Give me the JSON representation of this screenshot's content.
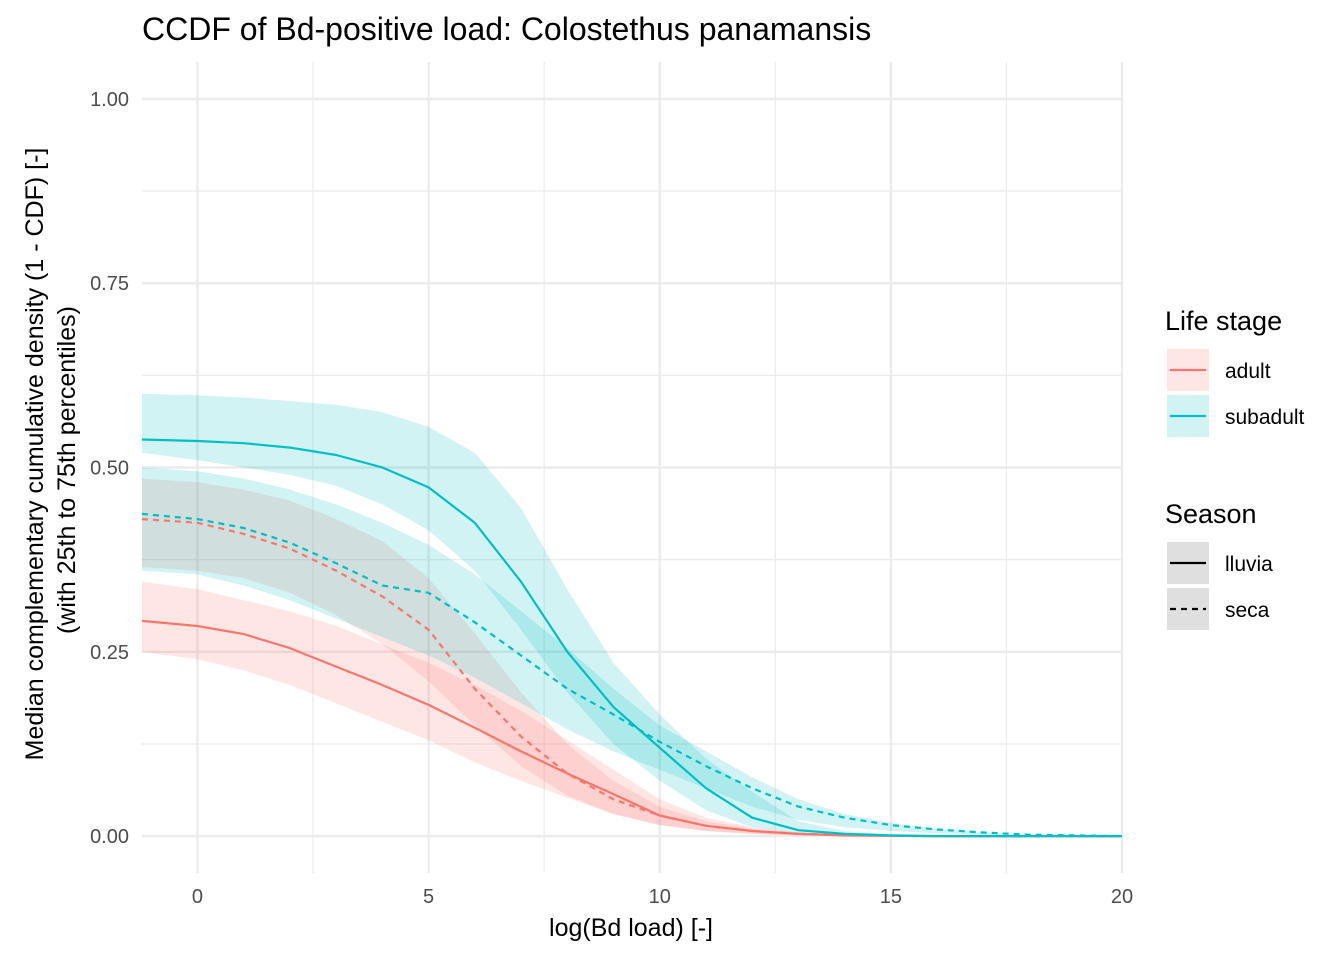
{
  "chart_data": {
    "type": "line",
    "title": "CCDF of Bd-positive load: Colostethus panamansis",
    "xlabel": "log(Bd load) [-]",
    "ylabel": [
      "Median complementary cumulative density (1 - CDF) [-]",
      "(with 25th to 75th percentiles)"
    ],
    "xlim": [
      -1.2,
      20
    ],
    "ylim": [
      -0.05,
      1.05
    ],
    "x_ticks": [
      0,
      5,
      10,
      15,
      20
    ],
    "x_tick_labels": [
      "0",
      "5",
      "10",
      "15",
      "20"
    ],
    "y_ticks": [
      0,
      0.25,
      0.5,
      0.75,
      1
    ],
    "y_tick_labels": [
      "0.00",
      "0.25",
      "0.50",
      "0.75",
      "1.00"
    ],
    "grid": true,
    "colors": {
      "adult": "#F8766D",
      "subadult": "#00BFC4"
    },
    "legend": {
      "placement": "right",
      "groups": [
        {
          "title": "Life stage",
          "kind": "color",
          "items": [
            {
              "label": "adult",
              "key": "adult"
            },
            {
              "label": "subadult",
              "key": "subadult"
            }
          ]
        },
        {
          "title": "Season",
          "kind": "linetype",
          "items": [
            {
              "label": "lluvia",
              "dash": "solid"
            },
            {
              "label": "seca",
              "dash": "dashed"
            }
          ]
        }
      ]
    },
    "series": [
      {
        "stage": "adult",
        "season": "lluvia",
        "x": [
          -1.2,
          0,
          1,
          2,
          3,
          4,
          5,
          6,
          7,
          8,
          9,
          10,
          11,
          12,
          13,
          14,
          15,
          16,
          17,
          18,
          19,
          20
        ],
        "median": [
          0.292,
          0.285,
          0.274,
          0.255,
          0.23,
          0.205,
          0.178,
          0.147,
          0.115,
          0.085,
          0.057,
          0.028,
          0.014,
          0.007,
          0.003,
          0.001,
          0.0005,
          0,
          0,
          0,
          0,
          0
        ],
        "lower": [
          0.25,
          0.24,
          0.225,
          0.205,
          0.18,
          0.155,
          0.13,
          0.1,
          0.075,
          0.052,
          0.03,
          0.015,
          0.007,
          0.003,
          0.001,
          0.0005,
          0,
          0,
          0,
          0,
          0,
          0
        ],
        "upper": [
          0.345,
          0.335,
          0.32,
          0.305,
          0.285,
          0.26,
          0.235,
          0.205,
          0.17,
          0.13,
          0.09,
          0.05,
          0.025,
          0.012,
          0.005,
          0.002,
          0.001,
          0,
          0,
          0,
          0,
          0
        ]
      },
      {
        "stage": "adult",
        "season": "seca",
        "x": [
          -1.2,
          0,
          1,
          2,
          3,
          4,
          5,
          6,
          7,
          8,
          9,
          10,
          11,
          12,
          13,
          14,
          15,
          16,
          17,
          18,
          19,
          20
        ],
        "median": [
          0.43,
          0.425,
          0.41,
          0.39,
          0.36,
          0.325,
          0.28,
          0.2,
          0.135,
          0.085,
          0.05,
          0.028,
          0.014,
          0.007,
          0.003,
          0.0015,
          0.0005,
          0,
          0,
          0,
          0,
          0
        ],
        "lower": [
          0.365,
          0.36,
          0.35,
          0.33,
          0.3,
          0.26,
          0.21,
          0.15,
          0.095,
          0.055,
          0.03,
          0.015,
          0.007,
          0.003,
          0.001,
          0.0005,
          0,
          0,
          0,
          0,
          0,
          0
        ],
        "upper": [
          0.485,
          0.48,
          0.47,
          0.455,
          0.43,
          0.4,
          0.35,
          0.275,
          0.195,
          0.125,
          0.075,
          0.04,
          0.02,
          0.01,
          0.005,
          0.002,
          0.001,
          0,
          0,
          0,
          0,
          0
        ]
      },
      {
        "stage": "subadult",
        "season": "lluvia",
        "x": [
          -1.2,
          0,
          1,
          2,
          3,
          4,
          5,
          6,
          7,
          8,
          9,
          10,
          11,
          12,
          13,
          14,
          15,
          16,
          17,
          18,
          19,
          20
        ],
        "median": [
          0.538,
          0.536,
          0.533,
          0.527,
          0.517,
          0.5,
          0.473,
          0.425,
          0.345,
          0.25,
          0.175,
          0.12,
          0.065,
          0.025,
          0.008,
          0.003,
          0.001,
          0,
          0,
          0,
          0,
          0
        ],
        "lower": [
          0.52,
          0.51,
          0.5,
          0.49,
          0.475,
          0.45,
          0.415,
          0.36,
          0.28,
          0.195,
          0.125,
          0.075,
          0.035,
          0.012,
          0.004,
          0.001,
          0,
          0,
          0,
          0,
          0,
          0
        ],
        "upper": [
          0.6,
          0.598,
          0.595,
          0.59,
          0.585,
          0.575,
          0.555,
          0.52,
          0.445,
          0.335,
          0.235,
          0.165,
          0.105,
          0.06,
          0.02,
          0.007,
          0.002,
          0,
          0,
          0,
          0,
          0
        ]
      },
      {
        "stage": "subadult",
        "season": "seca",
        "x": [
          -1.2,
          0,
          1,
          2,
          3,
          4,
          5,
          6,
          7,
          8,
          9,
          10,
          11,
          12,
          13,
          14,
          15,
          16,
          17,
          18,
          19,
          20
        ],
        "median": [
          0.437,
          0.43,
          0.418,
          0.398,
          0.37,
          0.34,
          0.33,
          0.29,
          0.245,
          0.2,
          0.165,
          0.128,
          0.095,
          0.065,
          0.04,
          0.025,
          0.015,
          0.009,
          0.005,
          0.002,
          0.001,
          0
        ],
        "lower": [
          0.36,
          0.355,
          0.34,
          0.32,
          0.295,
          0.27,
          0.245,
          0.215,
          0.18,
          0.145,
          0.115,
          0.09,
          0.065,
          0.04,
          0.022,
          0.012,
          0.007,
          0.004,
          0.002,
          0.001,
          0,
          0
        ],
        "upper": [
          0.5,
          0.495,
          0.485,
          0.47,
          0.45,
          0.425,
          0.395,
          0.355,
          0.305,
          0.255,
          0.2,
          0.15,
          0.115,
          0.08,
          0.05,
          0.03,
          0.018,
          0.01,
          0.005,
          0.002,
          0.001,
          0
        ]
      }
    ]
  }
}
